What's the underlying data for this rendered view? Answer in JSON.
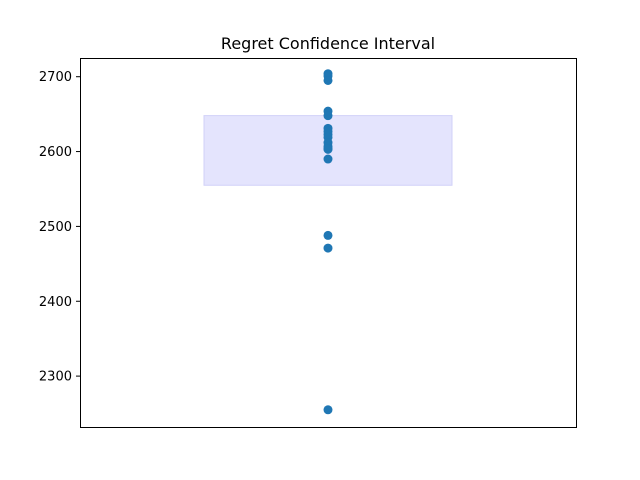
{
  "chart_data": {
    "type": "scatter",
    "title": "Regret Confidence Interval",
    "xlabel": "",
    "ylabel": "",
    "ylim": [
      2232,
      2725
    ],
    "xlim": [
      -1,
      1
    ],
    "yticks": [
      2300,
      2400,
      2500,
      2600,
      2700
    ],
    "xticks": [],
    "grid": false,
    "legend": "none",
    "confidence_interval": {
      "x_range": [
        -0.5,
        0.5
      ],
      "y_range": [
        2555,
        2648
      ],
      "color": "#e4e4fd",
      "edge_color": "#d0d0f8"
    },
    "point_color": "#1f77b4",
    "series": [
      {
        "x": [
          0,
          0,
          0,
          0,
          0,
          0,
          0,
          0,
          0,
          0,
          0,
          0,
          0,
          0,
          0,
          0,
          0
        ],
        "values": [
          2704,
          2701,
          2695,
          2654,
          2648,
          2631,
          2627,
          2623,
          2619,
          2612,
          2607,
          2604,
          2590,
          2488,
          2471,
          2255,
          2603
        ]
      }
    ]
  }
}
